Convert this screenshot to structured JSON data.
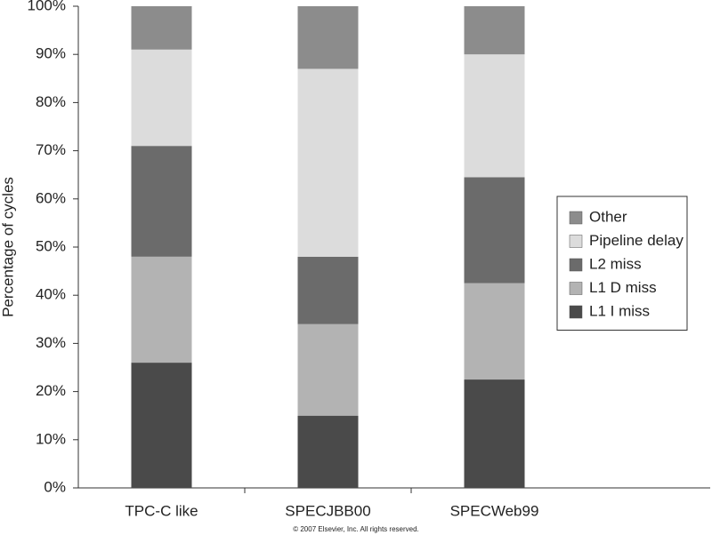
{
  "chart_data": {
    "type": "stacked_bar",
    "y_label": "Percentage of cycles",
    "annotation": "© 2007 Elsevier, Inc. All rights reserved.",
    "categories": [
      "TPC-C like",
      "SPECJBB00",
      "SPECWeb99"
    ],
    "series": [
      {
        "name": "L1 I miss",
        "color": "#4a4a4a",
        "values": [
          26,
          15,
          22.5
        ]
      },
      {
        "name": "L1 D miss",
        "color": "#b3b3b3",
        "values": [
          22,
          19,
          20
        ]
      },
      {
        "name": "L2 miss",
        "color": "#6b6b6b",
        "values": [
          23,
          14,
          22
        ]
      },
      {
        "name": "Pipeline delay",
        "color": "#dcdcdc",
        "values": [
          20,
          39,
          25.5
        ]
      },
      {
        "name": "Other",
        "color": "#8c8c8c",
        "values": [
          9,
          13,
          10
        ]
      }
    ],
    "ylim": [
      0,
      100
    ],
    "yticks": [
      {
        "value": 0,
        "label": "0%"
      },
      {
        "value": 10,
        "label": "10%"
      },
      {
        "value": 20,
        "label": "20%"
      },
      {
        "value": 30,
        "label": "30%"
      },
      {
        "value": 40,
        "label": "40%"
      },
      {
        "value": 50,
        "label": "50%"
      },
      {
        "value": 60,
        "label": "60%"
      },
      {
        "value": 70,
        "label": "70%"
      },
      {
        "value": 80,
        "label": "80%"
      },
      {
        "value": 90,
        "label": "90%"
      },
      {
        "value": 100,
        "label": "100%"
      }
    ],
    "legend": "right"
  }
}
